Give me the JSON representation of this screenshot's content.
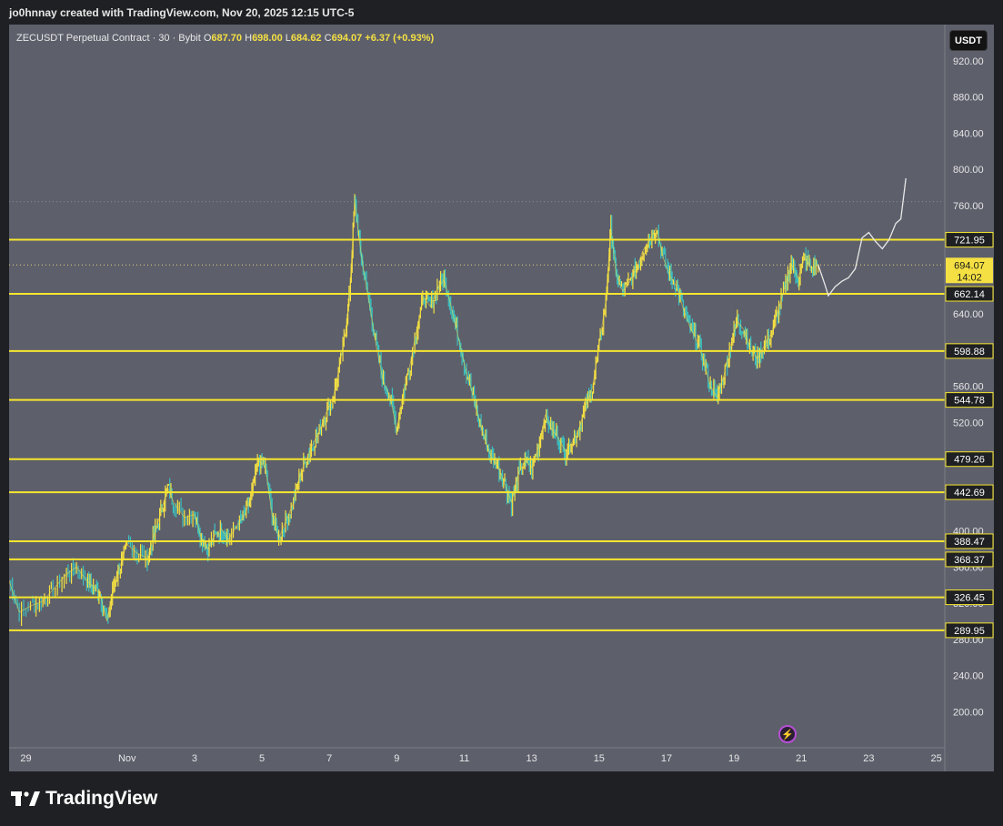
{
  "header": {
    "attribution": "jo0hnnay created with TradingView.com, Nov 20, 2025 12:15 UTC-5"
  },
  "legend": {
    "symbol": "ZECUSDT Perpetual Contract · 30 · Bybit",
    "open_label": "O",
    "open": "687.70",
    "high_label": "H",
    "high": "698.00",
    "low_label": "L",
    "low": "684.62",
    "close_label": "C",
    "close": "694.07",
    "change": "+6.37 (+0.93%)"
  },
  "currency_button": {
    "label": "USDT"
  },
  "footer": {
    "brand": "TradingView"
  },
  "colors": {
    "background": "#5d5f6b",
    "candle_up": "#f5e043",
    "candle_down": "#3cc0c0",
    "level_line": "#f7e62e",
    "projection": "#e8e8e8",
    "price_tag": "#f5e043"
  },
  "chart_data": {
    "type": "line",
    "ylim": [
      160,
      960
    ],
    "y_ticks": [
      200,
      240,
      280,
      320,
      360,
      400,
      440,
      480,
      520,
      560,
      600,
      640,
      680,
      720,
      760,
      800,
      840,
      880,
      920
    ],
    "y_tick_labels": [
      "200.00",
      "240.00",
      "280.00",
      "320.00",
      "360.00",
      "400.00",
      "440.00",
      "480.00",
      "520.00",
      "560.00",
      "600.00",
      "640.00",
      "680.00",
      "720.00",
      "760.00",
      "800.00",
      "840.00",
      "880.00",
      "920.00"
    ],
    "x_ticks": [
      {
        "label": "29",
        "day": -2
      },
      {
        "label": "Nov",
        "day": 1
      },
      {
        "label": "3",
        "day": 3
      },
      {
        "label": "5",
        "day": 5
      },
      {
        "label": "7",
        "day": 7
      },
      {
        "label": "9",
        "day": 9
      },
      {
        "label": "11",
        "day": 11
      },
      {
        "label": "13",
        "day": 13
      },
      {
        "label": "15",
        "day": 15
      },
      {
        "label": "17",
        "day": 17
      },
      {
        "label": "19",
        "day": 19
      },
      {
        "label": "21",
        "day": 21
      },
      {
        "label": "23",
        "day": 23
      },
      {
        "label": "25",
        "day": 25
      }
    ],
    "xlim": [
      -2.5,
      25.2
    ],
    "levels": [
      721.95,
      662.14,
      598.88,
      544.78,
      479.26,
      442.69,
      388.47,
      368.37,
      326.45,
      289.95
    ],
    "level_labels": [
      "721.95",
      "662.14",
      "598.88",
      "544.78",
      "479.26",
      "442.69",
      "388.47",
      "368.37",
      "326.45",
      "289.95"
    ],
    "dotted_levels": [
      764,
      694.07
    ],
    "current_price": {
      "value": 694.07,
      "label": "694.07",
      "countdown": "14:02"
    },
    "price_path": [
      [
        -2.5,
        345
      ],
      [
        -2.2,
        310
      ],
      [
        -1.8,
        318
      ],
      [
        -1.5,
        322
      ],
      [
        -1.2,
        335
      ],
      [
        -0.8,
        352
      ],
      [
        -0.5,
        360
      ],
      [
        -0.2,
        345
      ],
      [
        0.0,
        338
      ],
      [
        0.2,
        330
      ],
      [
        0.4,
        300
      ],
      [
        0.6,
        340
      ],
      [
        0.8,
        362
      ],
      [
        1.0,
        385
      ],
      [
        1.3,
        375
      ],
      [
        1.6,
        370
      ],
      [
        1.8,
        395
      ],
      [
        2.0,
        420
      ],
      [
        2.2,
        448
      ],
      [
        2.4,
        430
      ],
      [
        2.7,
        415
      ],
      [
        3.0,
        418
      ],
      [
        3.2,
        392
      ],
      [
        3.4,
        380
      ],
      [
        3.6,
        395
      ],
      [
        3.8,
        402
      ],
      [
        4.0,
        390
      ],
      [
        4.3,
        408
      ],
      [
        4.5,
        418
      ],
      [
        4.7,
        440
      ],
      [
        4.9,
        478
      ],
      [
        5.1,
        470
      ],
      [
        5.3,
        418
      ],
      [
        5.5,
        392
      ],
      [
        5.7,
        410
      ],
      [
        5.9,
        428
      ],
      [
        6.1,
        458
      ],
      [
        6.3,
        478
      ],
      [
        6.5,
        495
      ],
      [
        6.7,
        510
      ],
      [
        6.9,
        530
      ],
      [
        7.1,
        545
      ],
      [
        7.3,
        582
      ],
      [
        7.5,
        625
      ],
      [
        7.6,
        662
      ],
      [
        7.75,
        765
      ],
      [
        7.9,
        718
      ],
      [
        8.0,
        692
      ],
      [
        8.2,
        648
      ],
      [
        8.4,
        602
      ],
      [
        8.6,
        565
      ],
      [
        8.8,
        548
      ],
      [
        9.0,
        512
      ],
      [
        9.2,
        555
      ],
      [
        9.4,
        585
      ],
      [
        9.6,
        625
      ],
      [
        9.8,
        658
      ],
      [
        10.0,
        648
      ],
      [
        10.2,
        668
      ],
      [
        10.4,
        678
      ],
      [
        10.6,
        650
      ],
      [
        10.8,
        618
      ],
      [
        11.0,
        585
      ],
      [
        11.2,
        558
      ],
      [
        11.4,
        528
      ],
      [
        11.6,
        502
      ],
      [
        11.8,
        482
      ],
      [
        12.0,
        472
      ],
      [
        12.2,
        452
      ],
      [
        12.4,
        432
      ],
      [
        12.6,
        462
      ],
      [
        12.8,
        478
      ],
      [
        13.0,
        470
      ],
      [
        13.2,
        492
      ],
      [
        13.4,
        528
      ],
      [
        13.6,
        512
      ],
      [
        13.8,
        502
      ],
      [
        14.0,
        488
      ],
      [
        14.2,
        498
      ],
      [
        14.4,
        512
      ],
      [
        14.6,
        538
      ],
      [
        14.8,
        558
      ],
      [
        15.0,
        605
      ],
      [
        15.2,
        655
      ],
      [
        15.35,
        735
      ],
      [
        15.5,
        685
      ],
      [
        15.7,
        665
      ],
      [
        15.9,
        675
      ],
      [
        16.1,
        690
      ],
      [
        16.3,
        710
      ],
      [
        16.5,
        722
      ],
      [
        16.7,
        735
      ],
      [
        16.9,
        702
      ],
      [
        17.1,
        682
      ],
      [
        17.3,
        670
      ],
      [
        17.5,
        645
      ],
      [
        17.7,
        625
      ],
      [
        17.9,
        610
      ],
      [
        18.1,
        588
      ],
      [
        18.3,
        560
      ],
      [
        18.5,
        548
      ],
      [
        18.7,
        572
      ],
      [
        18.9,
        605
      ],
      [
        19.1,
        632
      ],
      [
        19.3,
        622
      ],
      [
        19.5,
        600
      ],
      [
        19.7,
        590
      ],
      [
        19.9,
        605
      ],
      [
        20.1,
        618
      ],
      [
        20.3,
        642
      ],
      [
        20.5,
        668
      ],
      [
        20.7,
        695
      ],
      [
        20.9,
        680
      ],
      [
        21.1,
        702
      ],
      [
        21.3,
        690
      ],
      [
        21.5,
        694
      ]
    ],
    "projection_path": [
      [
        21.5,
        694
      ],
      [
        21.7,
        672
      ],
      [
        21.8,
        660
      ],
      [
        21.9,
        665
      ],
      [
        22.0,
        670
      ],
      [
        22.2,
        676
      ],
      [
        22.4,
        680
      ],
      [
        22.6,
        690
      ],
      [
        22.8,
        724
      ],
      [
        23.0,
        730
      ],
      [
        23.2,
        720
      ],
      [
        23.4,
        712
      ],
      [
        23.6,
        722
      ],
      [
        23.8,
        740
      ],
      [
        23.95,
        745
      ],
      [
        24.1,
        790
      ]
    ]
  }
}
